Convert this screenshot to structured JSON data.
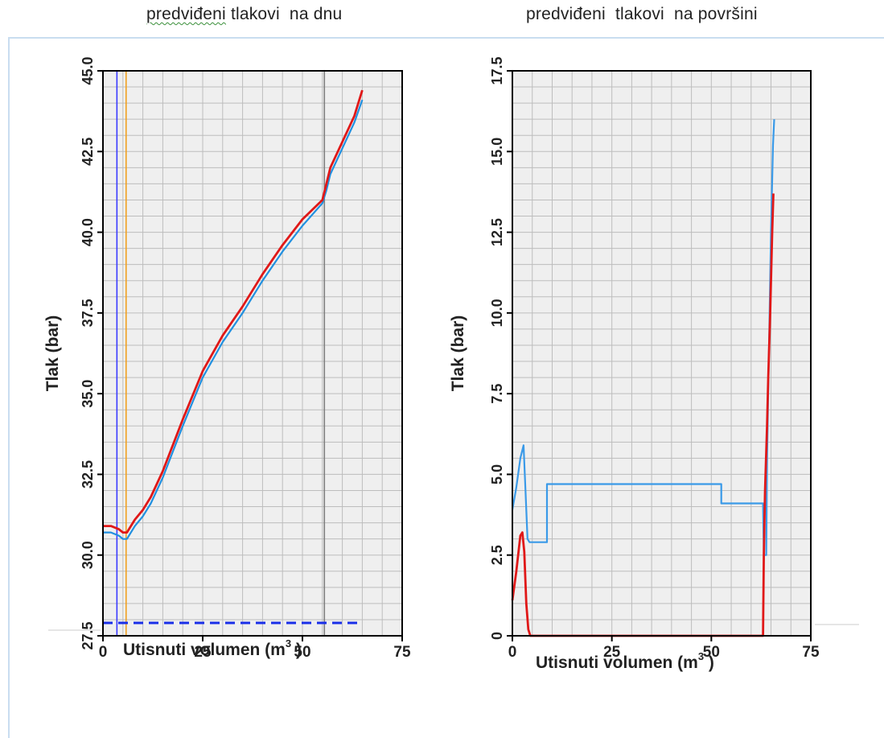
{
  "titles": {
    "left_word": "predviđeni",
    "left_rest": " tlakovi  na dnu",
    "right": "predviđeni  tlakovi  na površini"
  },
  "chart_data": [
    {
      "type": "line",
      "title": "predviđeni tlakovi na dnu",
      "xlabel_text": "Utisnuti volumen (m",
      "xlabel_sup": "3",
      "xlabel_close": " )",
      "ylabel": "Tlak (bar)",
      "xlim": [
        0,
        75
      ],
      "ylim": [
        27.5,
        45.0
      ],
      "xticks": [
        "0",
        "25",
        "50",
        "75"
      ],
      "yticks": [
        "27.5",
        "30.0",
        "32.5",
        "35.0",
        "37.5",
        "40.0",
        "42.5",
        "45.0"
      ],
      "grid": true,
      "vlines": [
        {
          "x": 3.5,
          "color": "#3a3aff"
        },
        {
          "x": 5.8,
          "color": "#f0a020"
        },
        {
          "x": 55.5,
          "color": "#808080"
        }
      ],
      "series": [
        {
          "color": "#2090e0",
          "x": [
            0,
            2,
            4,
            5,
            6,
            8,
            10,
            12,
            15,
            20,
            25,
            30,
            35,
            40,
            45,
            50,
            55,
            56,
            57,
            60,
            63,
            65
          ],
          "y": [
            30.7,
            30.7,
            30.6,
            30.5,
            30.5,
            30.9,
            31.2,
            31.6,
            32.4,
            34.0,
            35.5,
            36.6,
            37.5,
            38.5,
            39.4,
            40.2,
            40.9,
            41.3,
            41.8,
            42.6,
            43.4,
            44.1
          ]
        },
        {
          "color": "#e01818",
          "x": [
            0,
            2,
            4,
            5,
            6,
            8,
            10,
            12,
            15,
            20,
            25,
            30,
            35,
            40,
            45,
            50,
            55,
            56,
            57,
            60,
            63,
            65
          ],
          "y": [
            30.9,
            30.9,
            30.8,
            30.7,
            30.7,
            31.1,
            31.4,
            31.8,
            32.6,
            34.2,
            35.7,
            36.8,
            37.7,
            38.7,
            39.6,
            40.4,
            41.0,
            41.5,
            42.0,
            42.8,
            43.6,
            44.4
          ]
        }
      ],
      "hline_dashed": {
        "y": 27.9,
        "x": [
          0,
          64
        ],
        "color": "#1a2fe8"
      }
    },
    {
      "type": "line",
      "title": "predviđeni tlakovi na površini",
      "xlabel_text": "Utisnuti volumen (m",
      "xlabel_sup": "3",
      "xlabel_close": " )",
      "ylabel": "Tlak (bar)",
      "xlim": [
        0,
        75
      ],
      "ylim": [
        0,
        17.5
      ],
      "xticks": [
        "0",
        "25",
        "50",
        "75"
      ],
      "yticks": [
        "0",
        "2.5",
        "5.0",
        "7.5",
        "10.0",
        "12.5",
        "15.0",
        "17.5"
      ],
      "grid": true,
      "series": [
        {
          "color": "#3a9ae8",
          "x": [
            0,
            1,
            2,
            2.8,
            3.3,
            3.8,
            4.3,
            8.7,
            8.7,
            52.5,
            52.5,
            63.0,
            63.2,
            63.8,
            64.0,
            64.5,
            65.0,
            65.5,
            65.8
          ],
          "y": [
            3.9,
            4.6,
            5.5,
            5.9,
            4.5,
            3.0,
            2.9,
            2.9,
            4.7,
            4.7,
            4.1,
            4.1,
            2.5,
            2.5,
            5.5,
            9.0,
            12.5,
            15.2,
            16.0
          ]
        },
        {
          "color": "#e01818",
          "x": [
            0,
            1,
            2,
            2.5,
            3.0,
            3.5,
            4.0,
            4.5,
            63.0,
            63.2,
            63.5,
            64.0,
            64.3,
            64.8,
            65.3,
            65.6
          ],
          "y": [
            1.1,
            2.0,
            3.1,
            3.2,
            2.6,
            1.0,
            0.2,
            0.0,
            0.0,
            2.5,
            4.5,
            6.5,
            8.0,
            10.0,
            12.5,
            13.7
          ]
        }
      ]
    }
  ]
}
